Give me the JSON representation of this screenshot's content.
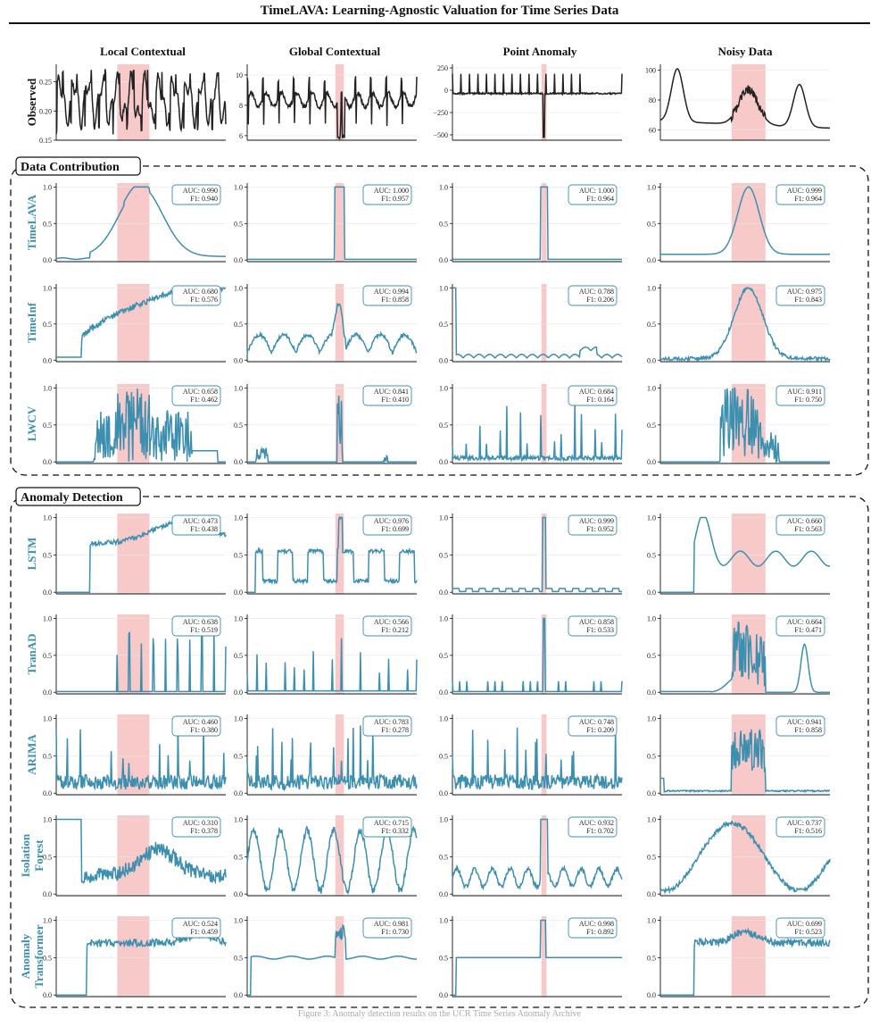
{
  "title": "TimeLAVA: Learning-Agnostic Valuation for Time Series Data",
  "caption": "Figure 3: Anomaly detection results on the UCR Time Series Anomaly Archive",
  "colors": {
    "series": "#3d8fb0",
    "observed": "#222222",
    "highlight": "#f7c9c9",
    "grid": "#e6e6e6",
    "axis": "#111111"
  },
  "columns": [
    "Local Contextual",
    "Global Contextual",
    "Point Anomaly",
    "Noisy Data"
  ],
  "sections": [
    {
      "label": "Data Contribution",
      "rows": [
        "TimeLAVA",
        "TimeInf",
        "LWCV"
      ]
    },
    {
      "label": "Anomaly Detection",
      "rows": [
        "LSTM",
        "TranAD",
        "ARIMA",
        "Isolation Forest",
        "Anomaly Transformer"
      ]
    }
  ],
  "chart_data": [
    {
      "type": "line",
      "title": "",
      "row": "Observed",
      "ylabel": "Observed",
      "panels": [
        {
          "column": "Local Contextual",
          "yticks": [
            "0.15",
            "0.20",
            "0.25"
          ],
          "ylim": [
            0.15,
            0.28
          ],
          "anomaly_region": [
            0.36,
            0.55
          ]
        },
        {
          "column": "Global Contextual",
          "yticks": [
            "6",
            "8",
            "10"
          ],
          "ylim": [
            5.7,
            10.7
          ],
          "anomaly_region": [
            0.52,
            0.57
          ]
        },
        {
          "column": "Point Anomaly",
          "yticks": [
            "−500",
            "−250",
            "0",
            "250"
          ],
          "ylim": [
            -560,
            290
          ],
          "anomaly_region": [
            0.525,
            0.555
          ]
        },
        {
          "column": "Noisy Data",
          "yticks": [
            "60",
            "80",
            "100"
          ],
          "ylim": [
            53,
            104
          ],
          "anomaly_region": [
            0.42,
            0.62
          ]
        }
      ]
    },
    {
      "type": "line",
      "title": "",
      "section": "Data Contribution",
      "yticks": [
        "0.0",
        "0.5",
        "1.0"
      ],
      "ylim": [
        0,
        1
      ],
      "rows": [
        {
          "method": "TimeLAVA",
          "panels": [
            {
              "column": "Local Contextual",
              "auc": "AUC: 0.990",
              "f1": "F1: 0.940"
            },
            {
              "column": "Global Contextual",
              "auc": "AUC: 1.000",
              "f1": "F1: 0.957"
            },
            {
              "column": "Point Anomaly",
              "auc": "AUC: 1.000",
              "f1": "F1: 0.964"
            },
            {
              "column": "Noisy Data",
              "auc": "AUC: 0.999",
              "f1": "F1: 0.964"
            }
          ]
        },
        {
          "method": "TimeInf",
          "panels": [
            {
              "column": "Local Contextual",
              "auc": "AUC: 0.680",
              "f1": "F1: 0.576"
            },
            {
              "column": "Global Contextual",
              "auc": "AUC: 0.994",
              "f1": "F1: 0.858"
            },
            {
              "column": "Point Anomaly",
              "auc": "AUC: 0.788",
              "f1": "F1: 0.206"
            },
            {
              "column": "Noisy Data",
              "auc": "AUC: 0.975",
              "f1": "F1: 0.843"
            }
          ]
        },
        {
          "method": "LWCV",
          "panels": [
            {
              "column": "Local Contextual",
              "auc": "AUC: 0.658",
              "f1": "F1: 0.462"
            },
            {
              "column": "Global Contextual",
              "auc": "AUC: 0.841",
              "f1": "F1: 0.410"
            },
            {
              "column": "Point Anomaly",
              "auc": "AUC: 0.684",
              "f1": "F1: 0.164"
            },
            {
              "column": "Noisy Data",
              "auc": "AUC: 0.911",
              "f1": "F1: 0.750"
            }
          ]
        }
      ]
    },
    {
      "type": "line",
      "title": "",
      "section": "Anomaly Detection",
      "yticks": [
        "0.0",
        "0.5",
        "1.0"
      ],
      "ylim": [
        0,
        1
      ],
      "rows": [
        {
          "method": "LSTM",
          "panels": [
            {
              "column": "Local Contextual",
              "auc": "AUC: 0.473",
              "f1": "F1: 0.438"
            },
            {
              "column": "Global Contextual",
              "auc": "AUC: 0.976",
              "f1": "F1: 0.699"
            },
            {
              "column": "Point Anomaly",
              "auc": "AUC: 0.999",
              "f1": "F1: 0.952"
            },
            {
              "column": "Noisy Data",
              "auc": "AUC: 0.660",
              "f1": "F1: 0.563"
            }
          ]
        },
        {
          "method": "TranAD",
          "panels": [
            {
              "column": "Local Contextual",
              "auc": "AUC: 0.638",
              "f1": "F1: 0.519"
            },
            {
              "column": "Global Contextual",
              "auc": "AUC: 0.566",
              "f1": "F1: 0.212"
            },
            {
              "column": "Point Anomaly",
              "auc": "AUC: 0.858",
              "f1": "F1: 0.533"
            },
            {
              "column": "Noisy Data",
              "auc": "AUC: 0.664",
              "f1": "F1: 0.471"
            }
          ]
        },
        {
          "method": "ARIMA",
          "panels": [
            {
              "column": "Local Contextual",
              "auc": "AUC: 0.460",
              "f1": "F1: 0.380"
            },
            {
              "column": "Global Contextual",
              "auc": "AUC: 0.783",
              "f1": "F1: 0.278"
            },
            {
              "column": "Point Anomaly",
              "auc": "AUC: 0.748",
              "f1": "F1: 0.209"
            },
            {
              "column": "Noisy Data",
              "auc": "AUC: 0.941",
              "f1": "F1: 0.858"
            }
          ]
        },
        {
          "method": "Isolation Forest",
          "panels": [
            {
              "column": "Local Contextual",
              "auc": "AUC: 0.310",
              "f1": "F1: 0.378"
            },
            {
              "column": "Global Contextual",
              "auc": "AUC: 0.715",
              "f1": "F1: 0.332"
            },
            {
              "column": "Point Anomaly",
              "auc": "AUC: 0.932",
              "f1": "F1: 0.702"
            },
            {
              "column": "Noisy Data",
              "auc": "AUC: 0.737",
              "f1": "F1: 0.516"
            }
          ]
        },
        {
          "method": "Anomaly Transformer",
          "panels": [
            {
              "column": "Local Contextual",
              "auc": "AUC: 0.524",
              "f1": "F1: 0.459"
            },
            {
              "column": "Global Contextual",
              "auc": "AUC: 0.981",
              "f1": "F1: 0.730"
            },
            {
              "column": "Point Anomaly",
              "auc": "AUC: 0.998",
              "f1": "F1: 0.892"
            },
            {
              "column": "Noisy Data",
              "auc": "AUC: 0.699",
              "f1": "F1: 0.523"
            }
          ]
        }
      ]
    }
  ]
}
